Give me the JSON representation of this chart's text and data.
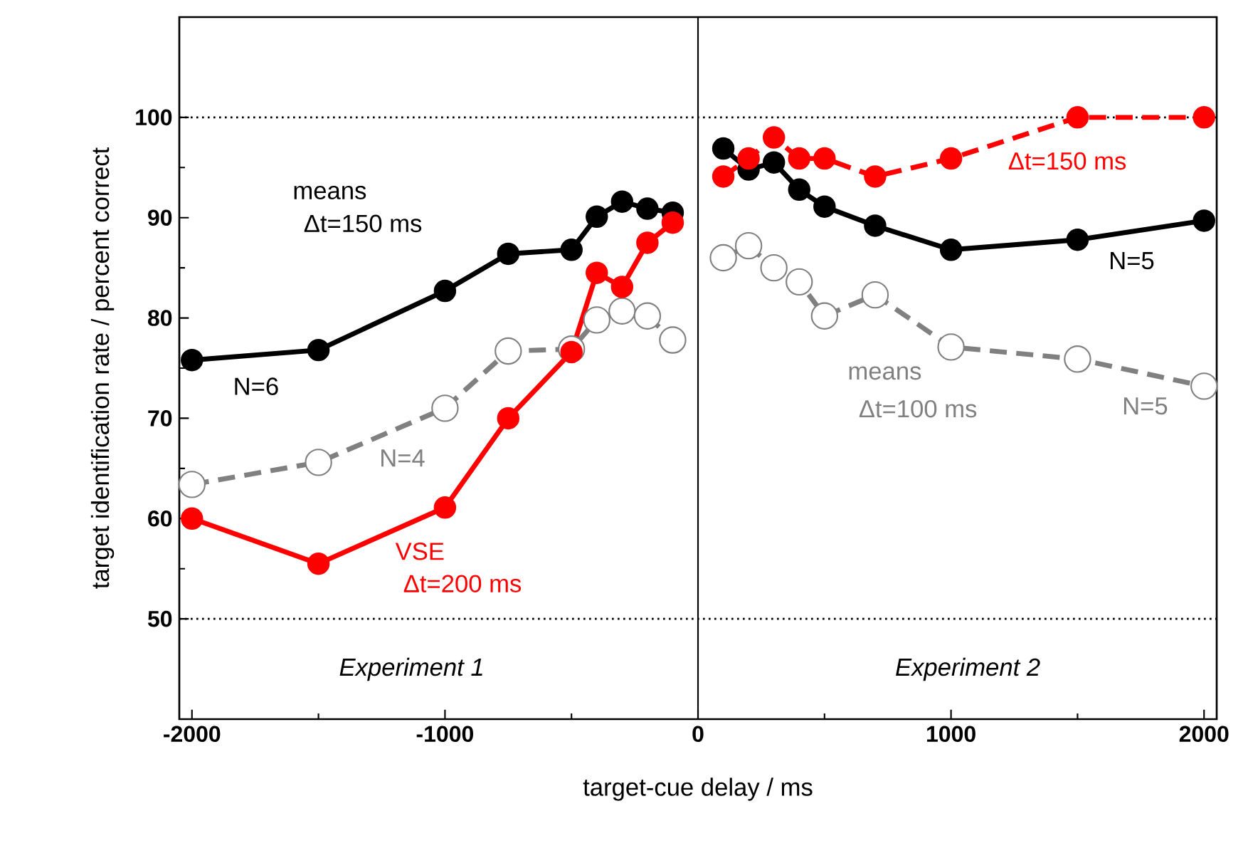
{
  "chart_data": {
    "type": "line",
    "xlabel": "target-cue delay / ms",
    "ylabel": "target identification rate / percent correct",
    "xlim": [
      -2050,
      2050
    ],
    "ylim": [
      40,
      110
    ],
    "xticks": [
      -2000,
      -1000,
      0,
      1000,
      2000
    ],
    "yticks": [
      50,
      60,
      70,
      80,
      90,
      100
    ],
    "marker": "circle",
    "grid": false,
    "series": [
      {
        "color": "#000000",
        "line_style": "solid",
        "x": [
          -2000,
          -1500,
          -1000,
          -750,
          -500,
          -400,
          -300,
          -200,
          -100
        ],
        "values": [
          75.8,
          76.8,
          82.7,
          86.4,
          86.8,
          90.1,
          91.6,
          90.9,
          90.5
        ]
      },
      {
        "color": "#808080",
        "line_style": "dashed",
        "x": [
          -2000,
          -1500,
          -1000,
          -750,
          -500,
          -400,
          -300,
          -200,
          -100
        ],
        "values": [
          63.4,
          65.6,
          71.0,
          76.7,
          76.9,
          79.8,
          80.7,
          80.2,
          77.8
        ]
      },
      {
        "color": "#ff0000",
        "line_style": "solid",
        "x": [
          -2000,
          -1500,
          -1000,
          -750,
          -500,
          -400,
          -300,
          -200,
          -100
        ],
        "values": [
          60.0,
          55.5,
          61.1,
          70.0,
          76.6,
          84.5,
          83.1,
          87.5,
          89.5
        ]
      },
      {
        "color": "#808080",
        "line_style": "dashed",
        "x": [
          100,
          200,
          300,
          400,
          500,
          700,
          1000,
          1500,
          2000
        ],
        "values": [
          86.0,
          87.2,
          85.0,
          83.6,
          80.2,
          82.3,
          77.1,
          75.9,
          73.2
        ]
      },
      {
        "color": "#000000",
        "line_style": "solid",
        "x": [
          100,
          200,
          300,
          400,
          500,
          700,
          1000,
          1500,
          2000
        ],
        "values": [
          96.9,
          94.8,
          95.5,
          92.8,
          91.1,
          89.2,
          86.8,
          87.8,
          89.7
        ]
      },
      {
        "color": "#ff0000",
        "line_style": "dashed",
        "x": [
          100,
          200,
          300,
          400,
          500,
          700,
          1000,
          1500,
          2000
        ],
        "values": [
          94.1,
          95.9,
          98.0,
          95.9,
          95.9,
          94.1,
          95.9,
          100,
          100
        ]
      }
    ],
    "ref_lines": [
      {
        "axis": "y",
        "value": 100,
        "line_style": "dotted",
        "color": "#000000"
      },
      {
        "axis": "y",
        "value": 50,
        "line_style": "dotted",
        "color": "#000000"
      },
      {
        "axis": "x",
        "value": 0,
        "line_style": "solid",
        "color": "#000000"
      }
    ],
    "annotations": [
      "means",
      "Δt=150 ms",
      "N=6",
      "N=4",
      "VSE",
      "Δt=200 ms",
      "Δt=150 ms",
      "N=5",
      "means",
      "Δt=100 ms",
      "N=5",
      "*Experiment 1*",
      "*Experiment 2*"
    ]
  }
}
